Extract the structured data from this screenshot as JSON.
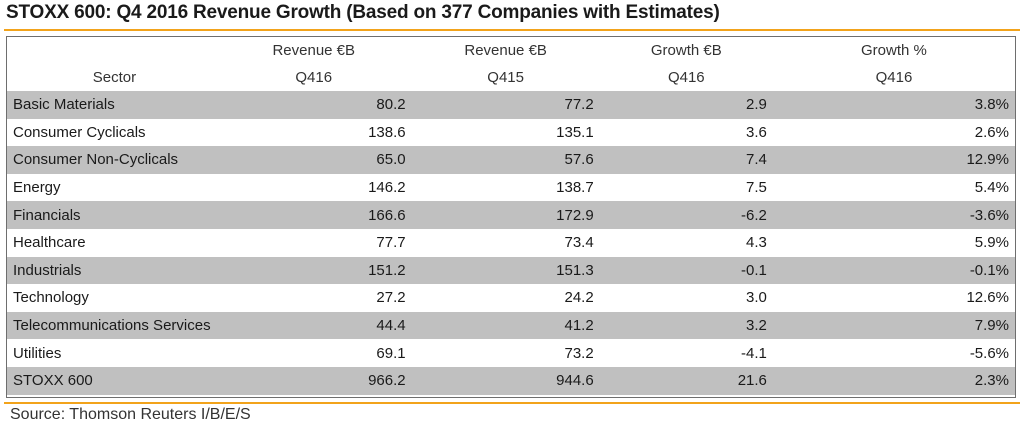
{
  "title": "STOXX 600: Q4 2016 Revenue Growth (Based on 377 Companies with Estimates)",
  "header": {
    "row1": [
      "",
      "Revenue €B",
      "Revenue €B",
      "Growth €B",
      "Growth %"
    ],
    "row2": [
      "Sector",
      "Q416",
      "Q415",
      "Q416",
      "Q416"
    ]
  },
  "rows": [
    {
      "sector": "Basic Materials",
      "rev_q416": "80.2",
      "rev_q415": "77.2",
      "growth_eur": "2.9",
      "growth_pct": "3.8%"
    },
    {
      "sector": "Consumer Cyclicals",
      "rev_q416": "138.6",
      "rev_q415": "135.1",
      "growth_eur": "3.6",
      "growth_pct": "2.6%"
    },
    {
      "sector": "Consumer Non-Cyclicals",
      "rev_q416": "65.0",
      "rev_q415": "57.6",
      "growth_eur": "7.4",
      "growth_pct": "12.9%"
    },
    {
      "sector": "Energy",
      "rev_q416": "146.2",
      "rev_q415": "138.7",
      "growth_eur": "7.5",
      "growth_pct": "5.4%"
    },
    {
      "sector": "Financials",
      "rev_q416": "166.6",
      "rev_q415": "172.9",
      "growth_eur": "-6.2",
      "growth_pct": "-3.6%"
    },
    {
      "sector": "Healthcare",
      "rev_q416": "77.7",
      "rev_q415": "73.4",
      "growth_eur": "4.3",
      "growth_pct": "5.9%"
    },
    {
      "sector": "Industrials",
      "rev_q416": "151.2",
      "rev_q415": "151.3",
      "growth_eur": "-0.1",
      "growth_pct": "-0.1%"
    },
    {
      "sector": "Technology",
      "rev_q416": "27.2",
      "rev_q415": "24.2",
      "growth_eur": "3.0",
      "growth_pct": "12.6%"
    },
    {
      "sector": "Telecommunications Services",
      "rev_q416": "44.4",
      "rev_q415": "41.2",
      "growth_eur": "3.2",
      "growth_pct": "7.9%"
    },
    {
      "sector": "Utilities",
      "rev_q416": "69.1",
      "rev_q415": "73.2",
      "growth_eur": "-4.1",
      "growth_pct": "-5.6%"
    }
  ],
  "total": {
    "sector": "STOXX 600",
    "rev_q416": "966.2",
    "rev_q415": "944.6",
    "growth_eur": "21.6",
    "growth_pct": "2.3%"
  },
  "source": "Source: Thomson Reuters I/B/E/S",
  "colors": {
    "accent_rule": "#f2a31b",
    "row_shade": "#c0c0c0",
    "border": "#6e6e6e"
  }
}
